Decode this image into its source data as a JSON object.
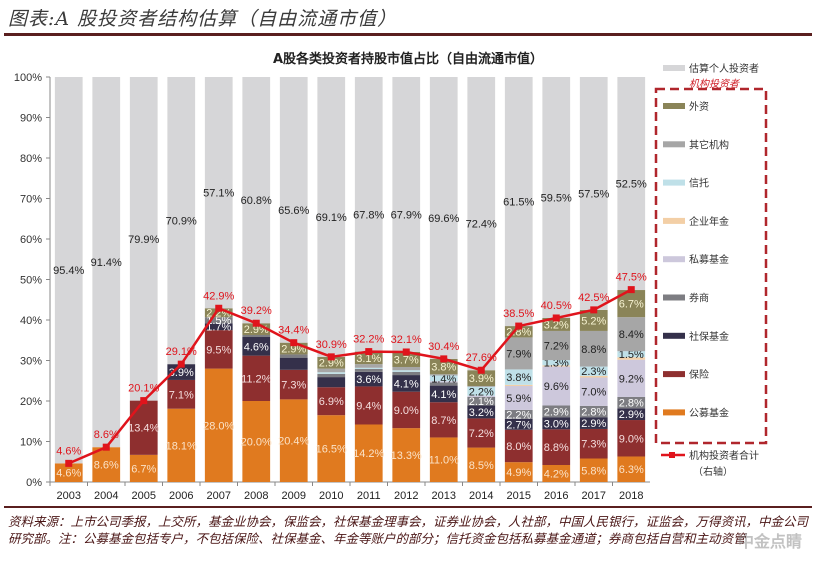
{
  "figure_title": "图表:A 股投资者结构估算（自由流通市值）",
  "footer": "资料来源：上市公司季报，上交所，基金业协会，保监会，社保基金理事会，证券业协会，人社部，中国人民银行，证监会，万得资讯，中金公司研究部。注：公募基金包括专户，不包括保险、社保基金、年金等账户的部分；信托资金包括私募基金通道；券商包括自营和主动资管",
  "watermark": "中金点睛",
  "chart_data": {
    "type": "bar",
    "stacked": true,
    "title": "A股各类投资者持股市值占比（自由流通市值）",
    "xlabel": "",
    "ylabel": "",
    "ylim": [
      0,
      100
    ],
    "yticks": [
      "0%",
      "10%",
      "20%",
      "30%",
      "40%",
      "50%",
      "60%",
      "70%",
      "80%",
      "90%",
      "100%"
    ],
    "categories": [
      "2003",
      "2004",
      "2005",
      "2006",
      "2007",
      "2008",
      "2009",
      "2010",
      "2011",
      "2012",
      "2013",
      "2014",
      "2015",
      "2016",
      "2017",
      "2018"
    ],
    "legend_position": "right",
    "legend_group_label": "机构投资者",
    "series": [
      {
        "name": "公募基金",
        "color": "#e07a1f",
        "label_color": "#fbe3c8",
        "values": [
          4.6,
          8.6,
          6.7,
          18.1,
          28.0,
          20.0,
          20.4,
          16.5,
          14.2,
          13.3,
          11.0,
          8.5,
          4.9,
          4.2,
          5.8,
          6.3
        ],
        "labels": [
          "4.6%",
          "8.6%",
          "6.7%",
          "18.1%",
          "28.0%",
          "20.0%",
          "20.4%",
          "16.5%",
          "14.2%",
          "13.3%",
          "11.0%",
          "8.5%",
          "4.9%",
          "4.2%",
          "5.8%",
          "6.3%"
        ]
      },
      {
        "name": "保险",
        "color": "#8e2f2f",
        "label_color": "#f4dede",
        "values": [
          0,
          0,
          13.4,
          7.1,
          9.5,
          11.2,
          7.3,
          6.9,
          9.4,
          9.0,
          8.7,
          7.2,
          8.0,
          8.8,
          7.3,
          9.0
        ],
        "labels": [
          "",
          "",
          "13.4%",
          "7.1%",
          "9.5%",
          "11.2%",
          "7.3%",
          "6.9%",
          "9.4%",
          "9.0%",
          "8.7%",
          "7.2%",
          "8.0%",
          "8.8%",
          "7.3%",
          "9.0%"
        ]
      },
      {
        "name": "社保基金",
        "color": "#34304a",
        "label_color": "#ffffff",
        "values": [
          0,
          0,
          0,
          3.9,
          1.7,
          4.6,
          3.0,
          2.5,
          3.6,
          4.1,
          4.1,
          3.2,
          2.7,
          3.0,
          2.9,
          2.9
        ],
        "labels": [
          "",
          "",
          "",
          "3.9%",
          "1.7%",
          "4.6%",
          "",
          "",
          "3.6%",
          "4.1%",
          "4.1%",
          "3.2%",
          "2.7%",
          "3.0%",
          "2.9%",
          "2.9%"
        ]
      },
      {
        "name": "券商",
        "color": "#7d7d82",
        "label_color": "#ffffff",
        "values": [
          0,
          0,
          0,
          0,
          1.5,
          0.5,
          0.8,
          0.8,
          0.7,
          0.8,
          0.8,
          2.1,
          2.2,
          2.9,
          2.8,
          2.8
        ],
        "labels": [
          "",
          "",
          "",
          "",
          "1.5%",
          "",
          "",
          "",
          "",
          "",
          "",
          "2.1%",
          "2.2%",
          "2.9%",
          "2.8%",
          "2.8%"
        ]
      },
      {
        "name": "私募基金",
        "color": "#cdc8dc",
        "label_color": "#222222",
        "values": [
          0,
          0,
          0,
          0,
          0,
          0,
          0,
          0,
          0,
          0,
          0.3,
          0.3,
          5.9,
          9.6,
          7.0,
          9.2
        ],
        "labels": [
          "",
          "",
          "",
          "",
          "",
          "",
          "",
          "",
          "",
          "",
          "",
          "",
          "5.9%",
          "9.6%",
          "7.0%",
          "9.2%"
        ]
      },
      {
        "name": "企业年金",
        "color": "#f3cfa6",
        "label_color": "#222222",
        "values": [
          0,
          0,
          0,
          0,
          0,
          0,
          0,
          0,
          0,
          0,
          0,
          0,
          0.3,
          0.3,
          0.4,
          0.6
        ],
        "labels": [
          "",
          "",
          "",
          "",
          "",
          "",
          "",
          "",
          "",
          "",
          "",
          "",
          "",
          "",
          "",
          ""
        ]
      },
      {
        "name": "信托",
        "color": "#bfe0e8",
        "label_color": "#222222",
        "values": [
          0,
          0,
          0,
          0,
          0,
          0,
          0,
          0.4,
          0.3,
          0.4,
          1.4,
          2.2,
          3.8,
          1.3,
          2.3,
          1.5
        ],
        "labels": [
          "",
          "",
          "",
          "",
          "",
          "",
          "",
          "",
          "",
          "",
          "1.4%",
          "2.2%",
          "3.8%",
          "1.3%",
          "2.3%",
          "1.5%"
        ]
      },
      {
        "name": "其它机构",
        "color": "#a6a6a6",
        "label_color": "#222222",
        "values": [
          0,
          0,
          0,
          0,
          0,
          0,
          0,
          0.9,
          0.9,
          0.8,
          0.3,
          0.2,
          7.9,
          7.2,
          8.8,
          8.4
        ],
        "labels": [
          "",
          "",
          "",
          "",
          "",
          "",
          "",
          "",
          "",
          "",
          "",
          "",
          "7.9%",
          "7.2%",
          "8.8%",
          "8.4%"
        ]
      },
      {
        "name": "外资",
        "color": "#8a8458",
        "label_color": "#f7f3d2",
        "values": [
          0,
          0,
          0,
          0,
          2.2,
          2.9,
          2.9,
          2.9,
          3.1,
          3.7,
          3.8,
          3.9,
          2.8,
          3.2,
          5.2,
          6.7
        ],
        "labels": [
          "",
          "",
          "",
          "",
          "2.2%",
          "2.9%",
          "2.9%",
          "2.9%",
          "3.1%",
          "3.7%",
          "3.8%",
          "3.9%",
          "2.8%",
          "3.2%",
          "5.2%",
          "6.7%"
        ]
      }
    ],
    "individual": {
      "name": "估算个人投资者",
      "color": "#d6d6d8",
      "label_color": "#222222",
      "values": [
        95.4,
        91.4,
        79.9,
        70.9,
        57.1,
        60.8,
        65.6,
        69.1,
        67.8,
        67.9,
        69.6,
        72.4,
        61.5,
        59.5,
        57.5,
        52.5
      ],
      "labels": [
        "95.4%",
        "91.4%",
        "79.9%",
        "70.9%",
        "57.1%",
        "60.8%",
        "65.6%",
        "69.1%",
        "67.8%",
        "67.9%",
        "69.6%",
        "72.4%",
        "61.5%",
        "59.5%",
        "57.5%",
        "52.5%"
      ]
    },
    "line": {
      "name": "机构投资者合计（右轴）",
      "color": "#e0141c",
      "values": [
        4.6,
        8.6,
        20.1,
        29.1,
        42.9,
        39.2,
        34.4,
        30.9,
        32.2,
        32.1,
        30.4,
        27.6,
        38.5,
        40.5,
        42.5,
        47.5
      ],
      "labels": [
        "4.6%",
        "8.6%",
        "20.1%",
        "29.1%",
        "42.9%",
        "39.2%",
        "34.4%",
        "30.9%",
        "32.2%",
        "32.1%",
        "30.4%",
        "27.6%",
        "38.5%",
        "40.5%",
        "42.5%",
        "47.5%"
      ]
    }
  }
}
